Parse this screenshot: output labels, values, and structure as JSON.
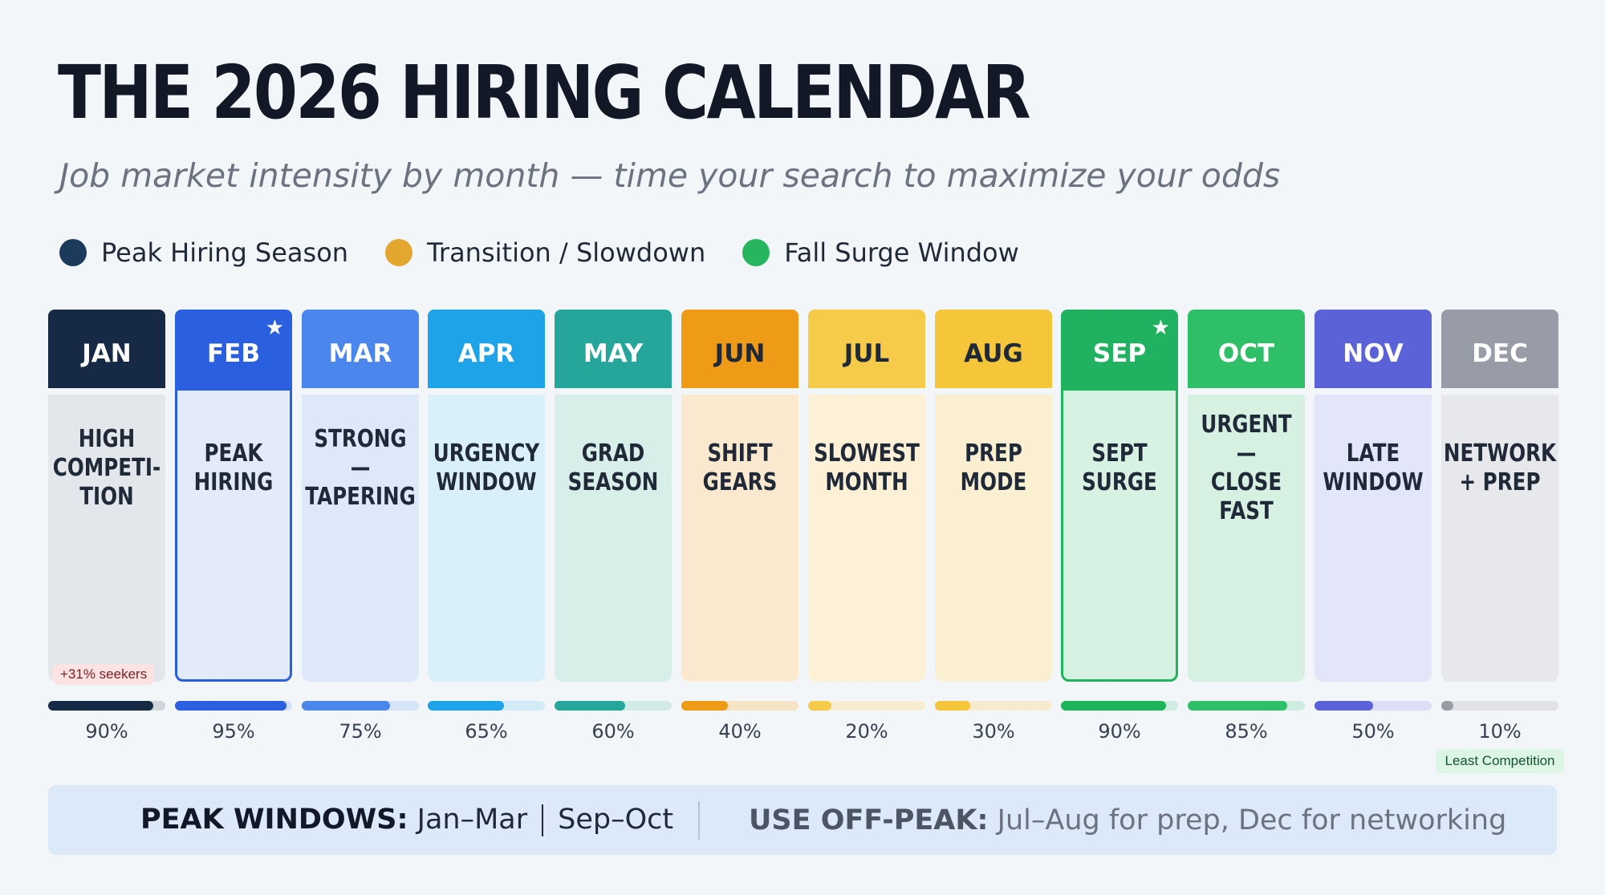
{
  "title": "THE 2026 HIRING CALENDAR",
  "subtitle": "Job market intensity by month — time your search to maximize your odds",
  "legend": [
    {
      "label": "Peak Hiring Season",
      "color": "#1b3a5c"
    },
    {
      "label": "Transition / Slowdown",
      "color": "#e3a730"
    },
    {
      "label": "Fall Surge Window",
      "color": "#27b560"
    }
  ],
  "chart_data": {
    "type": "bar",
    "categories": [
      "JAN",
      "FEB",
      "MAR",
      "APR",
      "MAY",
      "JUN",
      "JUL",
      "AUG",
      "SEP",
      "OCT",
      "NOV",
      "DEC"
    ],
    "values": [
      90,
      95,
      75,
      65,
      60,
      40,
      20,
      30,
      90,
      85,
      50,
      10
    ],
    "value_labels": [
      "90%",
      "95%",
      "75%",
      "65%",
      "60%",
      "40%",
      "20%",
      "30%",
      "90%",
      "85%",
      "50%",
      "10%"
    ],
    "ylim": [
      0,
      100
    ],
    "months": [
      {
        "label": "JAN",
        "text": "HIGH\nCOMPETI-\nTION",
        "head": "#172a45",
        "headText": "#ffffff",
        "body": "#e3e6ea",
        "bar": "#172a45",
        "track": "#d1d5db",
        "star": false,
        "badge": "+31% seekers"
      },
      {
        "label": "FEB",
        "text": "PEAK\nHIRING",
        "head": "#2a5fe0",
        "headText": "#ffffff",
        "body": "#e3ebfb",
        "bar": "#2a5fe0",
        "track": "#d6e0f7",
        "star": true,
        "highlight": true
      },
      {
        "label": "MAR",
        "text": "STRONG —\nTAPERING",
        "head": "#4a86ec",
        "headText": "#ffffff",
        "body": "#dde8fa",
        "bar": "#4a86ec",
        "track": "#d6e4f8",
        "star": false
      },
      {
        "label": "APR",
        "text": "URGENCY\nWINDOW",
        "head": "#1ea3e8",
        "headText": "#ffffff",
        "body": "#d9effa",
        "bar": "#1ea3e8",
        "track": "#d3ebf7",
        "star": false
      },
      {
        "label": "MAY",
        "text": "GRAD\nSEASON",
        "head": "#26a69a",
        "headText": "#ffffff",
        "body": "#d8efe9",
        "bar": "#26a69a",
        "track": "#d2ebe6",
        "star": false
      },
      {
        "label": "JUN",
        "text": "SHIFT\nGEARS",
        "head": "#ee9b17",
        "headText": "#1f2937",
        "body": "#fbe9cf",
        "bar": "#ee9b17",
        "track": "#f7e4c6",
        "star": false
      },
      {
        "label": "JUL",
        "text": "SLOWEST\nMONTH",
        "head": "#f6cb4a",
        "headText": "#1f2937",
        "body": "#fcf1d6",
        "bar": "#f6cb4a",
        "track": "#f7ecd0",
        "star": false
      },
      {
        "label": "AUG",
        "text": "PREP\nMODE",
        "head": "#f5c53a",
        "headText": "#1f2937",
        "body": "#fbefd2",
        "bar": "#f5c53a",
        "track": "#f7ebcd",
        "star": false
      },
      {
        "label": "SEP",
        "text": "SEPT\nSURGE",
        "head": "#21b261",
        "headText": "#ffffff",
        "body": "#d7f1e2",
        "bar": "#1db45a",
        "track": "#cfece0",
        "star": true,
        "highlight": true
      },
      {
        "label": "OCT",
        "text": "URGENT\n— CLOSE\nFAST",
        "head": "#2fbf68",
        "headText": "#ffffff",
        "body": "#d6f1e1",
        "bar": "#2fbf68",
        "track": "#cfece0",
        "star": false
      },
      {
        "label": "NOV",
        "text": "LATE\nWINDOW",
        "head": "#5b62d8",
        "headText": "#ffffff",
        "body": "#e3e5f9",
        "bar": "#5b62d8",
        "track": "#dddff5",
        "star": false
      },
      {
        "label": "DEC",
        "text": "NETWORK\n+ PREP",
        "head": "#979ca6",
        "headText": "#ffffff",
        "body": "#e6e8eb",
        "bar": "#979ca6",
        "track": "#e0e2e6",
        "star": false,
        "pctBadge": "Least Competition"
      }
    ]
  },
  "footer": {
    "peak_label": "PEAK WINDOWS:",
    "peak_value1": "Jan–Mar",
    "peak_value2": "Sep–Oct",
    "offpeak_label": "USE OFF-PEAK:",
    "offpeak_value": "Jul–Aug for prep, Dec for networking"
  }
}
